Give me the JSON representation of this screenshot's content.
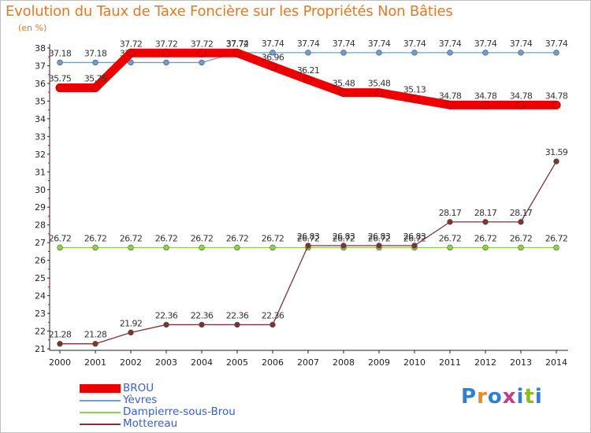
{
  "title": "Evolution du Taux de Taxe Foncière sur les Propriétés Non Bâties",
  "subtitle": "(en %)",
  "logo": {
    "text": "Proxiti",
    "colors": [
      "#2f7fd3",
      "#e8891c",
      "#2f7fd3",
      "#c43c8c",
      "#2f7fd3",
      "#8dbb25",
      "#2f7fd3"
    ]
  },
  "chart_data": {
    "type": "line",
    "title": "Evolution du Taux de Taxe Foncière sur les Propriétés Non Bâties",
    "ylabel": "(en %)",
    "xlabel": "",
    "ylim": [
      21,
      38
    ],
    "yticks": [
      21,
      22,
      23,
      24,
      25,
      26,
      27,
      28,
      29,
      30,
      31,
      32,
      33,
      34,
      35,
      36,
      37,
      38
    ],
    "categories": [
      "2000",
      "2001",
      "2002",
      "2003",
      "2004",
      "2005",
      "2006",
      "2007",
      "2008",
      "2009",
      "2010",
      "2011",
      "2012",
      "2013",
      "2014"
    ],
    "series": [
      {
        "name": "Yèvres",
        "color": "#6aa0cf",
        "values": [
          37.18,
          37.18,
          37.18,
          37.18,
          37.18,
          37.74,
          37.74,
          37.74,
          37.74,
          37.74,
          37.74,
          37.74,
          37.74,
          37.74,
          37.74
        ],
        "labels": [
          "37.18",
          "37.18",
          "37.18",
          "37.18",
          "37.18",
          "37.74",
          "37.74",
          "37.74",
          "37.74",
          "37.74",
          "37.74",
          "37.74",
          "37.74",
          "37.74",
          "37.74"
        ]
      },
      {
        "name": "Dampierre-sous-Brou",
        "color": "#8ed24a",
        "values": [
          26.72,
          26.72,
          26.72,
          26.72,
          26.72,
          26.72,
          26.72,
          26.72,
          26.72,
          26.72,
          26.72,
          26.72,
          26.72,
          26.72,
          26.72
        ],
        "labels": [
          "26.72",
          "26.72",
          "26.72",
          "26.72",
          "26.72",
          "26.72",
          "26.72",
          "26.72",
          "26.72",
          "26.72",
          "26.72",
          "26.72",
          "26.72",
          "26.72",
          "26.72"
        ]
      },
      {
        "name": "Mottereau",
        "color": "#7a3434",
        "values": [
          21.28,
          21.28,
          21.92,
          22.36,
          22.36,
          22.36,
          22.36,
          26.83,
          26.83,
          26.83,
          26.83,
          28.17,
          28.17,
          28.17,
          31.59
        ],
        "labels": [
          "21.28",
          "21.28",
          "21.92",
          "22.36",
          "22.36",
          "22.36",
          "22.36",
          "26.83",
          "26.83",
          "26.83",
          "26.83",
          "28.17",
          "28.17",
          "28.17",
          "31.59"
        ]
      },
      {
        "name": "BROU",
        "color": "#ee0000",
        "values": [
          35.75,
          35.75,
          37.72,
          37.72,
          37.72,
          37.72,
          36.96,
          36.21,
          35.48,
          35.48,
          35.13,
          34.78,
          34.78,
          34.78,
          34.78
        ],
        "labels": [
          "35.75",
          "35.75",
          "37.72",
          "37.72",
          "37.72",
          "37.72",
          "36.96",
          "36.21",
          "35.48",
          "35.48",
          "35.13",
          "34.78",
          "34.78",
          "34.78",
          "34.78"
        ]
      }
    ],
    "legend": [
      "BROU",
      "Yèvres",
      "Dampierre-sous-Brou",
      "Mottereau"
    ],
    "legend_position": "bottom-left",
    "grid": false
  }
}
